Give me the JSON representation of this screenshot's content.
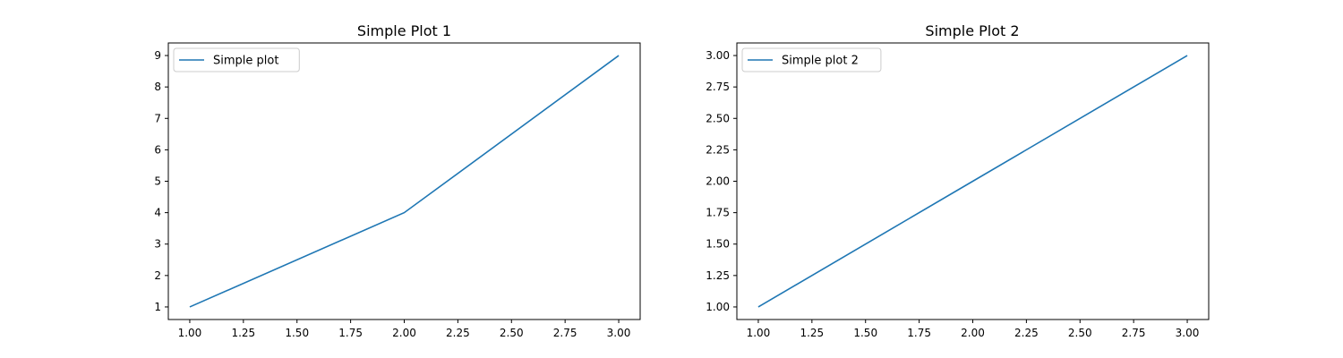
{
  "colors": {
    "series": "#1f77b4",
    "axis": "#000000",
    "background": "#ffffff"
  },
  "chart_data": [
    {
      "type": "line",
      "title": "Simple Plot 1",
      "xlabel": "",
      "ylabel": "",
      "xlim": [
        0.9,
        3.1
      ],
      "ylim": [
        0.6,
        9.4
      ],
      "xticks": [
        1.0,
        1.25,
        1.5,
        1.75,
        2.0,
        2.25,
        2.5,
        2.75,
        3.0
      ],
      "xtick_labels": [
        "1.00",
        "1.25",
        "1.50",
        "1.75",
        "2.00",
        "2.25",
        "2.50",
        "2.75",
        "3.00"
      ],
      "yticks": [
        1,
        2,
        3,
        4,
        5,
        6,
        7,
        8,
        9
      ],
      "ytick_labels": [
        "1",
        "2",
        "3",
        "4",
        "5",
        "6",
        "7",
        "8",
        "9"
      ],
      "grid": false,
      "legend_position": "upper-left",
      "series": [
        {
          "name": "Simple plot",
          "x": [
            1,
            2,
            3
          ],
          "y": [
            1,
            4,
            9
          ],
          "color": "#1f77b4"
        }
      ]
    },
    {
      "type": "line",
      "title": "Simple Plot 2",
      "xlabel": "",
      "ylabel": "",
      "xlim": [
        0.9,
        3.1
      ],
      "ylim": [
        0.9,
        3.1
      ],
      "xticks": [
        1.0,
        1.25,
        1.5,
        1.75,
        2.0,
        2.25,
        2.5,
        2.75,
        3.0
      ],
      "xtick_labels": [
        "1.00",
        "1.25",
        "1.50",
        "1.75",
        "2.00",
        "2.25",
        "2.50",
        "2.75",
        "3.00"
      ],
      "yticks": [
        1.0,
        1.25,
        1.5,
        1.75,
        2.0,
        2.25,
        2.5,
        2.75,
        3.0
      ],
      "ytick_labels": [
        "1.00",
        "1.25",
        "1.50",
        "1.75",
        "2.00",
        "2.25",
        "2.50",
        "2.75",
        "3.00"
      ],
      "grid": false,
      "legend_position": "upper-left",
      "series": [
        {
          "name": "Simple plot 2",
          "x": [
            1,
            2,
            3
          ],
          "y": [
            1,
            2,
            3
          ],
          "color": "#1f77b4"
        }
      ]
    }
  ]
}
